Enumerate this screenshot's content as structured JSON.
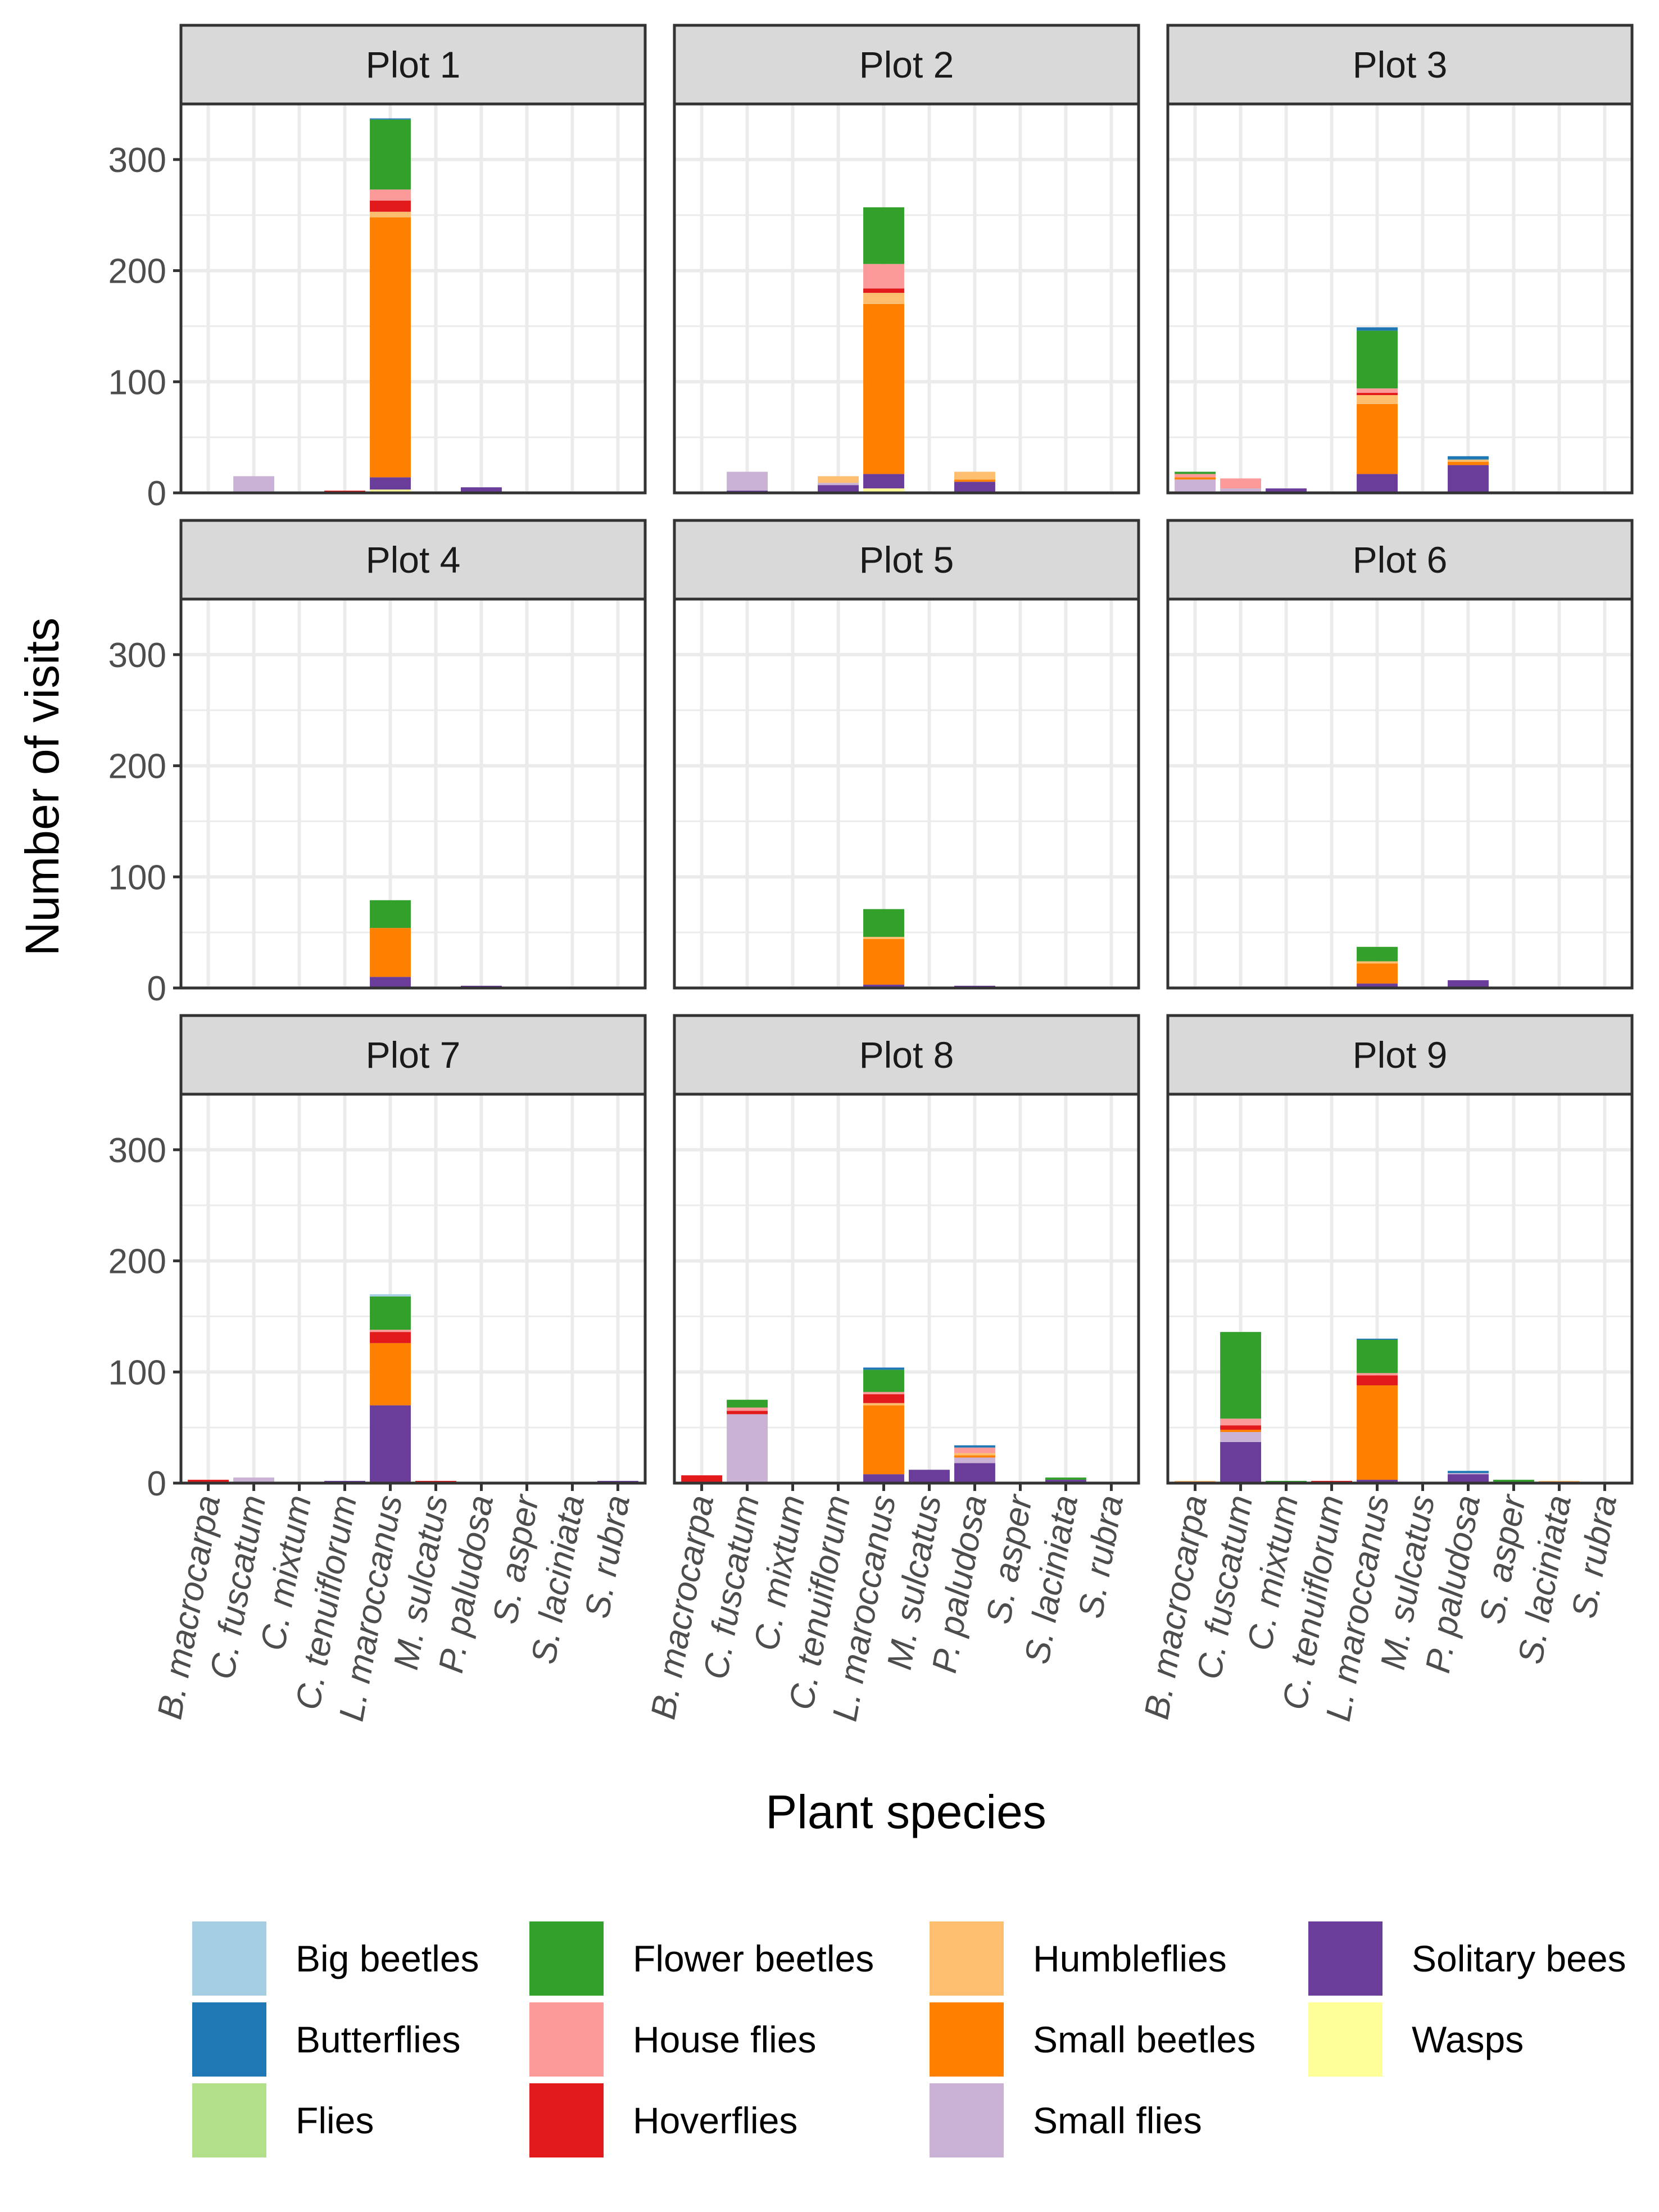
{
  "chart_data": {
    "type": "bar",
    "stacked": true,
    "facet_by": "plot",
    "xlabel": "Plant species",
    "ylabel": "Number of visits",
    "ylim": [
      0,
      350
    ],
    "y_ticks": [
      0,
      100,
      200,
      300
    ],
    "grid": true,
    "legend_position": "bottom",
    "categories": [
      "B. macrocarpa",
      "C. fuscatum",
      "C. mixtum",
      "C. tenuiflorum",
      "L. maroccanus",
      "M. sulcatus",
      "P. paludosa",
      "S. asper",
      "S. laciniata",
      "S. rubra"
    ],
    "groups": [
      {
        "name": "Big beetles",
        "color": "#a6cee3"
      },
      {
        "name": "Butterflies",
        "color": "#1f78b4"
      },
      {
        "name": "Flies",
        "color": "#b2df8a"
      },
      {
        "name": "Flower beetles",
        "color": "#33a02c"
      },
      {
        "name": "House flies",
        "color": "#fb9a99"
      },
      {
        "name": "Hoverflies",
        "color": "#e31a1c"
      },
      {
        "name": "Humbleflies",
        "color": "#fdbf6f"
      },
      {
        "name": "Small beetles",
        "color": "#ff7f00"
      },
      {
        "name": "Small flies",
        "color": "#cab2d6"
      },
      {
        "name": "Solitary bees",
        "color": "#6a3d9a"
      },
      {
        "name": "Wasps",
        "color": "#ffff99"
      }
    ],
    "stack_order": [
      "Wasps",
      "Solitary bees",
      "Small flies",
      "Small beetles",
      "Humbleflies",
      "Hoverflies",
      "House flies",
      "Flies",
      "Flower beetles",
      "Butterflies",
      "Big beetles"
    ],
    "panels": [
      {
        "title": "Plot 1",
        "bars": [
          {
            "category": "C. fuscatum",
            "values": {
              "Small flies": 15
            }
          },
          {
            "category": "C. tenuiflorum",
            "values": {
              "Solitary bees": 1,
              "Hoverflies": 1
            }
          },
          {
            "category": "L. maroccanus",
            "values": {
              "Wasps": 3,
              "Solitary bees": 11,
              "Small beetles": 234,
              "Humbleflies": 5,
              "Hoverflies": 10,
              "House flies": 10,
              "Flower beetles": 63,
              "Butterflies": 1
            }
          },
          {
            "category": "P. paludosa",
            "values": {
              "Solitary bees": 5
            }
          }
        ]
      },
      {
        "title": "Plot 2",
        "bars": [
          {
            "category": "B. macrocarpa",
            "values": {
              "Wasps": 1
            }
          },
          {
            "category": "C. fuscatum",
            "values": {
              "Solitary bees": 2,
              "Small flies": 17
            }
          },
          {
            "category": "C. tenuiflorum",
            "values": {
              "Solitary bees": 7,
              "Small flies": 2,
              "Humbleflies": 6
            }
          },
          {
            "category": "L. maroccanus",
            "values": {
              "Wasps": 4,
              "Solitary bees": 13,
              "Small beetles": 153,
              "Humbleflies": 10,
              "Hoverflies": 4,
              "House flies": 22,
              "Flower beetles": 51
            }
          },
          {
            "category": "P. paludosa",
            "values": {
              "Solitary bees": 10,
              "Small beetles": 2,
              "Humbleflies": 7
            }
          }
        ]
      },
      {
        "title": "Plot 3",
        "bars": [
          {
            "category": "B. macrocarpa",
            "values": {
              "Small flies": 12,
              "Small beetles": 2,
              "House flies": 3,
              "Flower beetles": 2
            }
          },
          {
            "category": "C. fuscatum",
            "values": {
              "Small flies": 4,
              "House flies": 9
            }
          },
          {
            "category": "C. mixtum",
            "values": {
              "Solitary bees": 4
            }
          },
          {
            "category": "L. maroccanus",
            "values": {
              "Solitary bees": 17,
              "Small beetles": 63,
              "Humbleflies": 8,
              "Hoverflies": 2,
              "House flies": 4,
              "Flower beetles": 52,
              "Butterflies": 3
            }
          },
          {
            "category": "P. paludosa",
            "values": {
              "Solitary bees": 25,
              "Small beetles": 3,
              "Humbleflies": 2,
              "Butterflies": 3
            }
          }
        ]
      },
      {
        "title": "Plot 4",
        "bars": [
          {
            "category": "L. maroccanus",
            "values": {
              "Solitary bees": 10,
              "Small beetles": 44,
              "Flower beetles": 25
            }
          },
          {
            "category": "P. paludosa",
            "values": {
              "Solitary bees": 2
            }
          }
        ]
      },
      {
        "title": "Plot 5",
        "bars": [
          {
            "category": "L. maroccanus",
            "values": {
              "Solitary bees": 3,
              "Small beetles": 41,
              "Humbleflies": 2,
              "Flower beetles": 25
            }
          },
          {
            "category": "P. paludosa",
            "values": {
              "Solitary bees": 2
            }
          }
        ]
      },
      {
        "title": "Plot 6",
        "bars": [
          {
            "category": "L. maroccanus",
            "values": {
              "Solitary bees": 4,
              "Small beetles": 18,
              "Humbleflies": 2,
              "Flower beetles": 13
            }
          },
          {
            "category": "P. paludosa",
            "values": {
              "Solitary bees": 7
            }
          }
        ]
      },
      {
        "title": "Plot 7",
        "bars": [
          {
            "category": "B. macrocarpa",
            "values": {
              "Hoverflies": 3
            }
          },
          {
            "category": "C. fuscatum",
            "values": {
              "Small flies": 5
            }
          },
          {
            "category": "C. tenuiflorum",
            "values": {
              "Solitary bees": 2
            }
          },
          {
            "category": "L. maroccanus",
            "values": {
              "Solitary bees": 70,
              "Small beetles": 56,
              "Hoverflies": 10,
              "House flies": 2,
              "Flower beetles": 30,
              "Big beetles": 2
            }
          },
          {
            "category": "M. sulcatus",
            "values": {
              "Hoverflies": 2
            }
          },
          {
            "category": "S. rubra",
            "values": {
              "Solitary bees": 2
            }
          }
        ]
      },
      {
        "title": "Plot 8",
        "bars": [
          {
            "category": "B. macrocarpa",
            "values": {
              "Hoverflies": 7
            }
          },
          {
            "category": "C. fuscatum",
            "values": {
              "Solitary bees": 1,
              "Small flies": 61,
              "Hoverflies": 3,
              "House flies": 3,
              "Flower beetles": 7
            }
          },
          {
            "category": "L. maroccanus",
            "values": {
              "Solitary bees": 8,
              "Small beetles": 62,
              "Humbleflies": 2,
              "Hoverflies": 8,
              "House flies": 2,
              "Flower beetles": 20,
              "Butterflies": 2
            }
          },
          {
            "category": "M. sulcatus",
            "values": {
              "Solitary bees": 12
            }
          },
          {
            "category": "P. paludosa",
            "values": {
              "Solitary bees": 18,
              "Small flies": 5,
              "House flies": 5,
              "Small beetles": 2,
              "Humbleflies": 2,
              "Butterflies": 2
            }
          },
          {
            "category": "S. laciniata",
            "values": {
              "Solitary bees": 3,
              "Flower beetles": 2
            }
          }
        ]
      },
      {
        "title": "Plot 9",
        "bars": [
          {
            "category": "B. macrocarpa",
            "values": {
              "Humbleflies": 2
            }
          },
          {
            "category": "C. fuscatum",
            "values": {
              "Solitary bees": 37,
              "Small flies": 9,
              "Small beetles": 2,
              "Hoverflies": 4,
              "House flies": 6,
              "Flower beetles": 78
            }
          },
          {
            "category": "C. mixtum",
            "values": {
              "Flower beetles": 2
            }
          },
          {
            "category": "C. tenuiflorum",
            "values": {
              "Hoverflies": 2
            }
          },
          {
            "category": "L. maroccanus",
            "values": {
              "Solitary bees": 3,
              "Small beetles": 85,
              "Hoverflies": 9,
              "House flies": 2,
              "Flower beetles": 30,
              "Butterflies": 1
            }
          },
          {
            "category": "P. paludosa",
            "values": {
              "Solitary bees": 8,
              "Small flies": 1,
              "Butterflies": 2
            }
          },
          {
            "category": "S. asper",
            "values": {
              "Flower beetles": 3
            }
          },
          {
            "category": "S. laciniata",
            "values": {
              "Humbleflies": 2
            }
          }
        ]
      }
    ]
  }
}
